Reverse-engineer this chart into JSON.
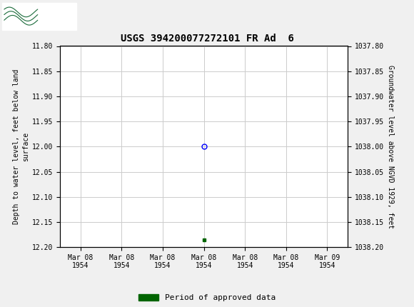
{
  "title": "USGS 394200077272101 FR Ad  6",
  "left_ylabel": "Depth to water level, feet below land\nsurface",
  "right_ylabel": "Groundwater level above NGVD 1929, feet",
  "ylim_left": [
    11.8,
    12.2
  ],
  "ylim_right": [
    1037.8,
    1038.2
  ],
  "yticks_left": [
    11.8,
    11.85,
    11.9,
    11.95,
    12.0,
    12.05,
    12.1,
    12.15,
    12.2
  ],
  "yticks_right": [
    1037.8,
    1037.85,
    1037.9,
    1037.95,
    1038.0,
    1038.05,
    1038.1,
    1038.15,
    1038.2
  ],
  "ytick_labels_left": [
    "11.80",
    "11.85",
    "11.90",
    "11.95",
    "12.00",
    "12.05",
    "12.10",
    "12.15",
    "12.20"
  ],
  "ytick_labels_right": [
    "1037.80",
    "1037.85",
    "1037.90",
    "1037.95",
    "1038.00",
    "1038.05",
    "1038.10",
    "1038.15",
    "1038.20"
  ],
  "data_point_x": 3.0,
  "data_point_y": 12.0,
  "data_point_color": "blue",
  "data_point_facecolor": "none",
  "data_point_size": 5,
  "green_marker_x": 3.0,
  "green_marker_y": 12.185,
  "green_marker_color": "#006400",
  "xtick_positions": [
    0,
    1,
    2,
    3,
    4,
    5,
    6
  ],
  "xtick_labels": [
    "Mar 08\n1954",
    "Mar 08\n1954",
    "Mar 08\n1954",
    "Mar 08\n1954",
    "Mar 08\n1954",
    "Mar 08\n1954",
    "Mar 09\n1954"
  ],
  "grid_color": "#cccccc",
  "background_color": "#f0f0f0",
  "plot_bg_color": "#ffffff",
  "header_color": "#1a6b3a",
  "legend_label": "Period of approved data",
  "legend_color": "#006400",
  "title_fontsize": 10,
  "tick_fontsize": 7,
  "label_fontsize": 7
}
